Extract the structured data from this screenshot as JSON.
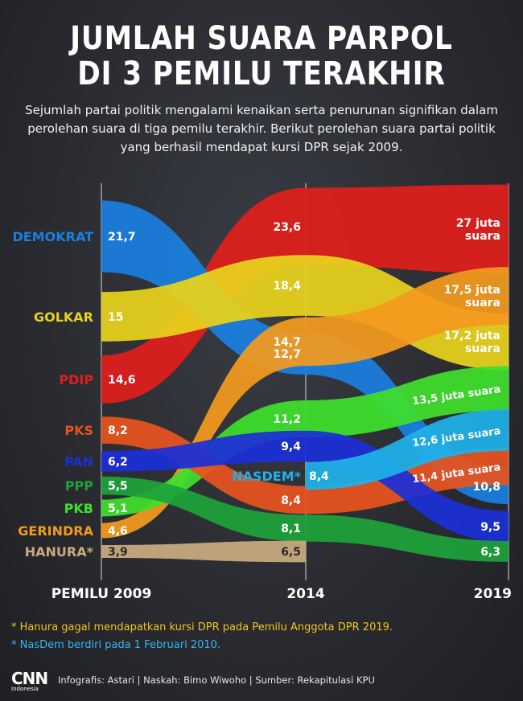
{
  "title_line1": "JUMLAH SUARA PARPOL",
  "title_line2": "DI 3 PEMILU TERAKHIR",
  "subtitle": "Sejumlah partai politik mengalami kenaikan serta penurunan signifikan dalam perolehan suara di tiga pemilu terakhir. Berikut perolehan suara partai politik yang berhasil mendapat kursi DPR sejak 2009.",
  "notes": {
    "hanura": "* Hanura gagal mendapatkan kursi DPR pada Pemilu Anggota DPR 2019.",
    "nasdem": "* NasDem berdiri pada 1 Februari 2010."
  },
  "footer": {
    "logo_cnn": "CNN",
    "logo_sub": "Indonesia",
    "credits": "Infografis: Astari | Naskah: Bimo Wiwoho | Sumber: Rekapitulasi KPU"
  },
  "chart_data": {
    "type": "area",
    "title": "JUMLAH SUARA PARPOL DI 3 PEMILU TERAKHIR",
    "unit": "juta suara",
    "x": [
      "PEMILU 2009",
      "2014",
      "2019"
    ],
    "series": [
      {
        "name": "DEMOKRAT",
        "color": "#1a7fe0",
        "values": [
          21.7,
          12.7,
          10.8
        ],
        "labels": [
          "21,7",
          "12,7",
          "10,8"
        ]
      },
      {
        "name": "GOLKAR",
        "color": "#e8d21c",
        "values": [
          15,
          18.4,
          17.2
        ],
        "labels": [
          "15",
          "18,4",
          "17,2 juta suara"
        ]
      },
      {
        "name": "PDIP",
        "color": "#e01f1c",
        "values": [
          14.6,
          23.6,
          27
        ],
        "labels": [
          "14,6",
          "23,6",
          "27 juta suara"
        ]
      },
      {
        "name": "PKS",
        "color": "#e8531e",
        "values": [
          8.2,
          8.4,
          11.4
        ],
        "labels": [
          "8,2",
          "8,4",
          "11,4 juta suara"
        ]
      },
      {
        "name": "PAN",
        "color": "#1c2fd6",
        "values": [
          6.2,
          9.4,
          9.5
        ],
        "labels": [
          "6,2",
          "9,4",
          "9,5"
        ]
      },
      {
        "name": "PPP",
        "color": "#1ea23a",
        "values": [
          5.5,
          8.1,
          6.3
        ],
        "labels": [
          "5,5",
          "8,1",
          "6,3"
        ]
      },
      {
        "name": "PKB",
        "color": "#3ee02c",
        "values": [
          5.1,
          11.2,
          13.5
        ],
        "labels": [
          "5,1",
          "11,2",
          "13,5 juta suara"
        ]
      },
      {
        "name": "GERINDRA",
        "color": "#f39a1e",
        "values": [
          4.6,
          14.7,
          17.5
        ],
        "labels": [
          "4,6",
          "14,7",
          "17,5 juta suara"
        ]
      },
      {
        "name": "HANURA*",
        "color": "#c9ab7f",
        "values": [
          3.9,
          6.5,
          null
        ],
        "labels": [
          "3,9",
          "6,5",
          ""
        ]
      },
      {
        "name": "NASDEM*",
        "color": "#1fb0e8",
        "values": [
          null,
          8.4,
          12.6
        ],
        "labels": [
          "",
          "8,4",
          "12,6 juta suara"
        ]
      }
    ]
  }
}
